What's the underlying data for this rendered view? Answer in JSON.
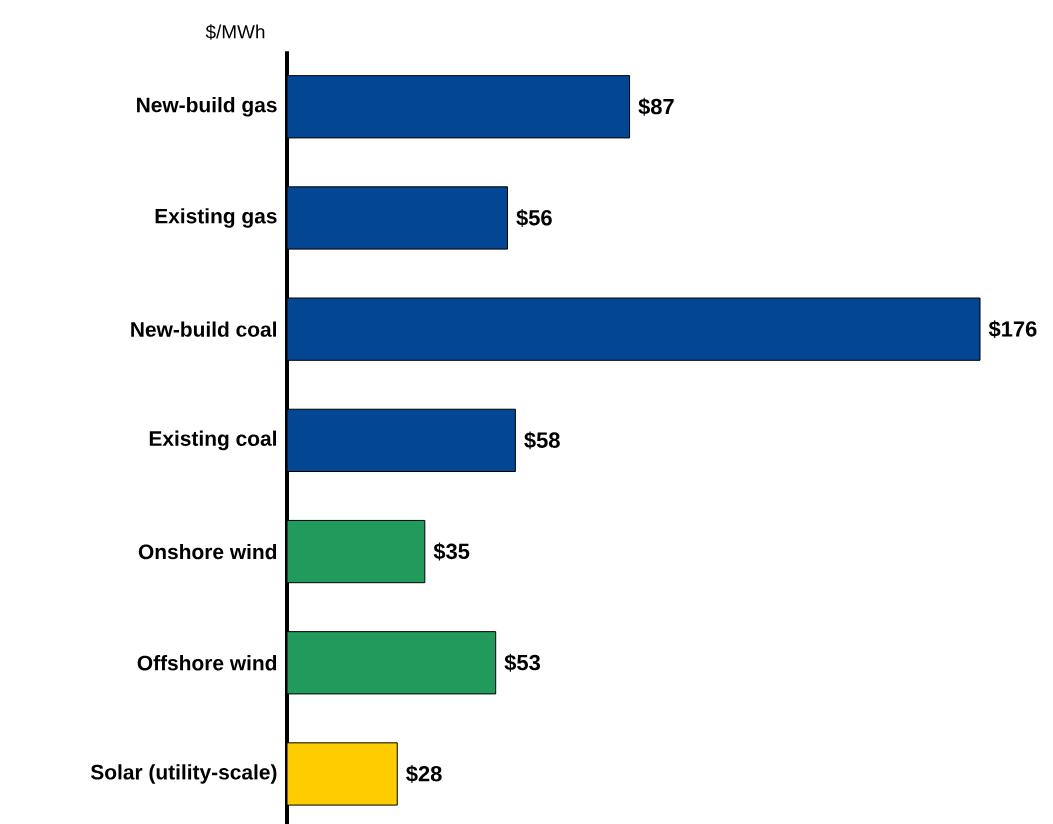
{
  "chart_data": {
    "type": "bar",
    "orientation": "horizontal",
    "ylabel": "$/MWh",
    "categories": [
      "New-build gas",
      "Existing gas",
      "New-build coal",
      "Existing coal",
      "Onshore wind",
      "Offshore wind",
      "Solar (utility-scale)"
    ],
    "values": [
      87,
      56,
      176,
      58,
      35,
      53,
      28
    ],
    "value_labels": [
      "$87",
      "$56",
      "$176",
      "$58",
      "$35",
      "$53",
      "$28"
    ],
    "colors": [
      "#034694",
      "#034694",
      "#034694",
      "#034694",
      "#229a5c",
      "#229a5c",
      "#ffcc00"
    ],
    "tick_labels": "y"
  }
}
